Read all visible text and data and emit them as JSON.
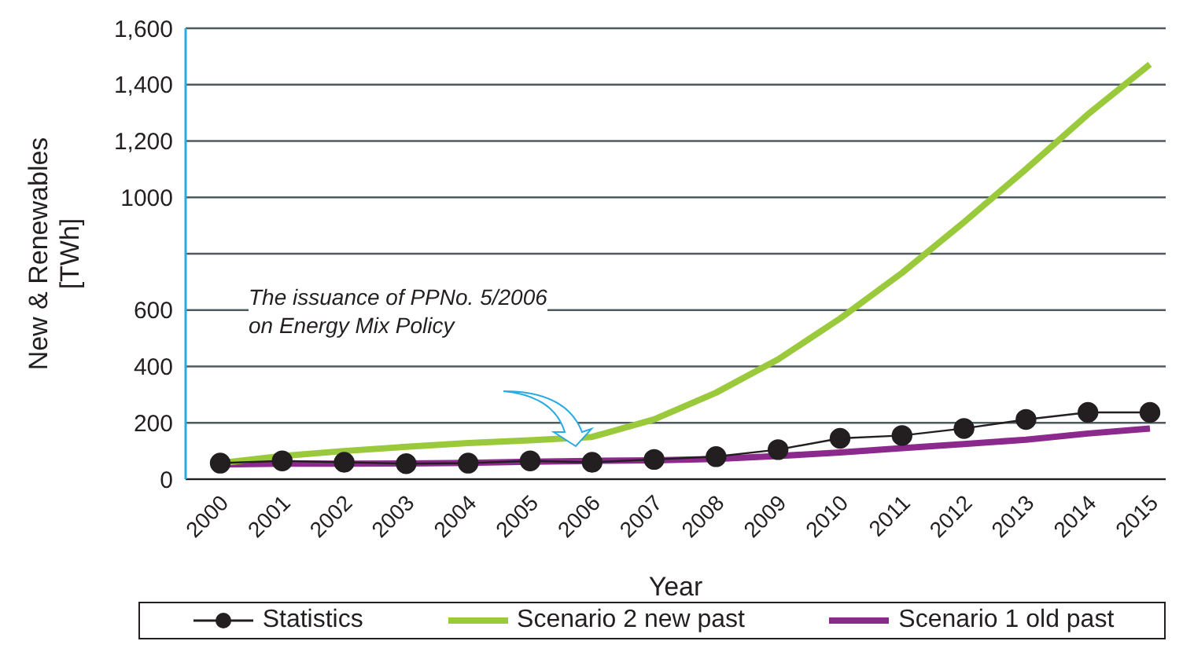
{
  "chart_data": {
    "type": "line",
    "xlabel": "Year",
    "ylabel": "New & Renewables\n[TWh]",
    "categories": [
      "2000",
      "2001",
      "2002",
      "2003",
      "2004",
      "2005",
      "2006",
      "2007",
      "2008",
      "2009",
      "2010",
      "2011",
      "2012",
      "2013",
      "2014",
      "2015"
    ],
    "series": [
      {
        "name": "Statistics",
        "color": "#231f20",
        "marker": "circle",
        "values": [
          57,
          65,
          60,
          55,
          57,
          65,
          60,
          70,
          80,
          105,
          145,
          155,
          180,
          212,
          237,
          237
        ]
      },
      {
        "name": "Scenario 2 new past",
        "color": "#9bc93c",
        "marker": "none",
        "values": [
          57,
          82,
          100,
          115,
          128,
          138,
          150,
          212,
          307,
          425,
          570,
          732,
          912,
          1100,
          1295,
          1472
        ]
      },
      {
        "name": "Scenario 1 old past",
        "color": "#8b2a8c",
        "marker": "none",
        "values": [
          52,
          55,
          55,
          56,
          58,
          62,
          65,
          67,
          72,
          82,
          95,
          110,
          125,
          140,
          162,
          180
        ]
      }
    ],
    "ylim": [
      0,
      1600
    ],
    "yticks": [
      0,
      200,
      400,
      600,
      {
        "value": 800,
        "label": null
      },
      1000,
      {
        "value": 1200,
        "label": "1,200"
      },
      {
        "value": 1400,
        "label": "1,400"
      },
      {
        "value": 1600,
        "label": "1,600"
      }
    ],
    "grid": "y",
    "legend": "bottom",
    "annotations": [
      "The issuance of PPNo. 5/2006\non Energy Mix Policy"
    ]
  }
}
